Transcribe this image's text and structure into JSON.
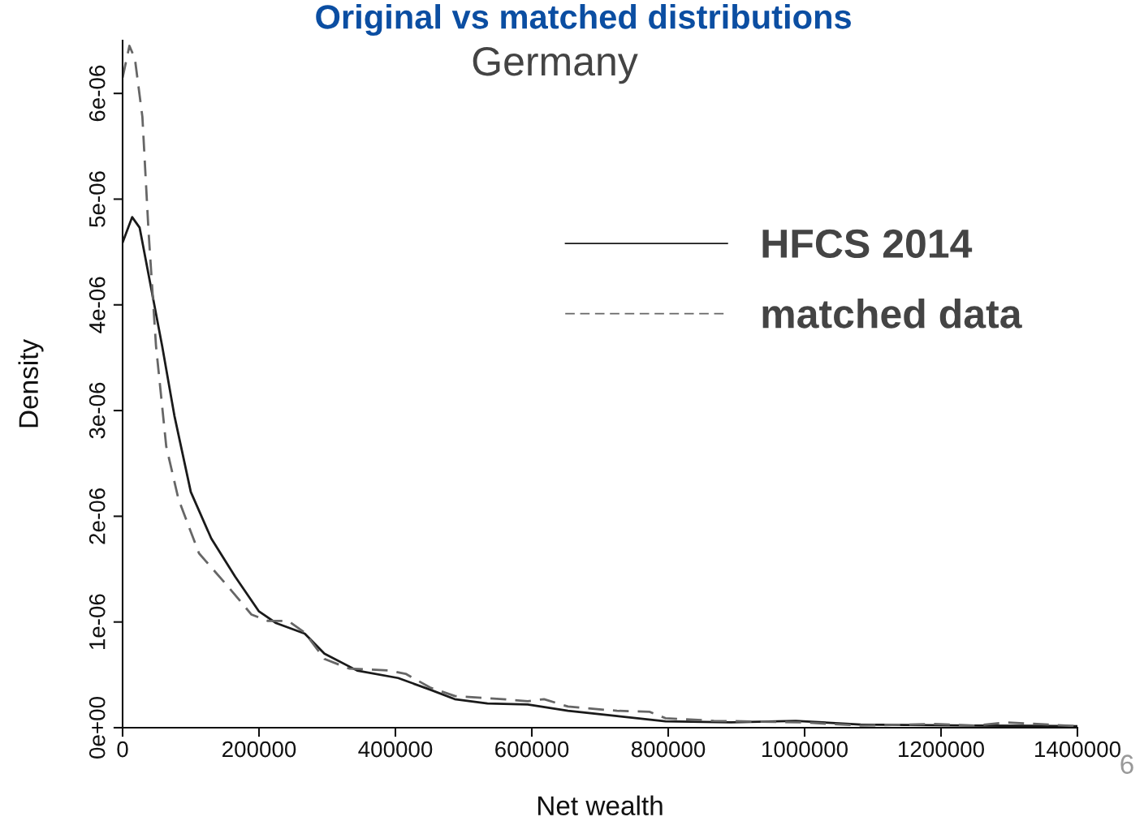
{
  "chart_data": {
    "type": "line",
    "title": "Original vs matched distributions",
    "subtitle": "Germany",
    "xlabel": "Net wealth",
    "ylabel": "Density",
    "xlim": [
      0,
      1400000
    ],
    "xticks": [
      0,
      200000,
      400000,
      600000,
      800000,
      1000000,
      1200000,
      1400000
    ],
    "ylim": [
      0,
      6.5e-06
    ],
    "yticks": [
      {
        "value": 0,
        "label": "0e+00"
      },
      {
        "value": 1e-06,
        "label": "1e-06"
      },
      {
        "value": 2e-06,
        "label": "2e-06"
      },
      {
        "value": 3e-06,
        "label": "3e-06"
      },
      {
        "value": 4e-06,
        "label": "4e-06"
      },
      {
        "value": 5e-06,
        "label": "5e-06"
      },
      {
        "value": 6e-06,
        "label": "6e-06"
      }
    ],
    "legend": "top right",
    "grid": false,
    "annotations": [
      "6"
    ],
    "series": [
      {
        "name": "HFCS 2014",
        "color": "#1a1a1a",
        "line_style": "solid",
        "x": [
          0,
          14000,
          25000,
          40000,
          58000,
          76000,
          100000,
          130000,
          165000,
          200000,
          225000,
          267000,
          296000,
          344000,
          404000,
          451000,
          487000,
          535000,
          594000,
          653000,
          725000,
          796000,
          892000,
          987000,
          1082000,
          1249000,
          1400000
        ],
        "values": [
          4.59e-06,
          4.83e-06,
          4.73e-06,
          4.22e-06,
          3.61e-06,
          2.95e-06,
          2.23e-06,
          1.79e-06,
          1.43e-06,
          1.1e-06,
          9.9e-07,
          8.9e-07,
          7e-07,
          5.4e-07,
          4.7e-07,
          3.6e-07,
          2.7e-07,
          2.3e-07,
          2.2e-07,
          1.6e-07,
          1.1e-07,
          6e-08,
          5e-08,
          6.5e-08,
          3e-08,
          2e-08,
          1.5e-08
        ]
      },
      {
        "name": "matched data",
        "color": "#666666",
        "line_style": "dashed",
        "x": [
          0,
          10000,
          18000,
          29000,
          38000,
          49000,
          64000,
          82000,
          112000,
          154000,
          189000,
          213000,
          243000,
          267000,
          296000,
          332000,
          392000,
          415000,
          451000,
          487000,
          558000,
          594000,
          618000,
          653000,
          725000,
          773000,
          796000,
          867000,
          999000,
          1082000,
          1189000,
          1249000,
          1296000,
          1400000
        ],
        "values": [
          6.15e-06,
          6.45e-06,
          6.33e-06,
          5.78e-06,
          4.7e-06,
          3.61e-06,
          2.66e-06,
          2.16e-06,
          1.65e-06,
          1.34e-06,
          1.07e-06,
          1.01e-06,
          1.01e-06,
          9e-07,
          6.5e-07,
          5.6e-07,
          5.4e-07,
          5.1e-07,
          3.8e-07,
          3e-07,
          2.7e-07,
          2.5e-07,
          2.7e-07,
          2e-07,
          1.6e-07,
          1.5e-07,
          9e-08,
          6.5e-08,
          5e-08,
          2e-08,
          3.5e-08,
          2e-08,
          5e-08,
          1.5e-08
        ]
      }
    ]
  }
}
